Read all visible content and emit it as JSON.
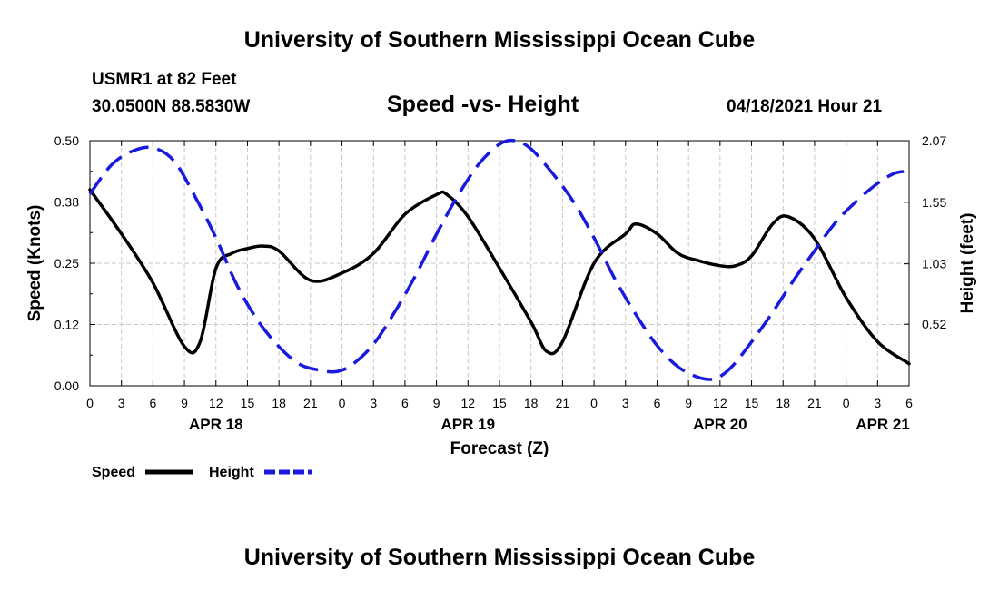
{
  "header": {
    "title_top": "University of Southern Mississippi Ocean Cube",
    "station": "USMR1 at 82 Feet",
    "coords": "30.0500N  88.5830W",
    "chart_title": "Speed -vs- Height",
    "datetime": "04/18/2021 Hour 21"
  },
  "footer": {
    "title_bottom": "University of Southern Mississippi Ocean Cube"
  },
  "chart_data": {
    "type": "line",
    "title": "Speed -vs- Height",
    "xlabel": "Forecast (Z)",
    "ylabel_left": "Speed (Knots)",
    "ylabel_right": "Height (feet)",
    "x_range_hours": [
      0,
      78
    ],
    "x_ticks": [
      {
        "h": 0,
        "label": "0"
      },
      {
        "h": 3,
        "label": "3"
      },
      {
        "h": 6,
        "label": "6"
      },
      {
        "h": 9,
        "label": "9"
      },
      {
        "h": 12,
        "label": "12"
      },
      {
        "h": 15,
        "label": "15"
      },
      {
        "h": 18,
        "label": "18"
      },
      {
        "h": 21,
        "label": "21"
      },
      {
        "h": 24,
        "label": "0"
      },
      {
        "h": 27,
        "label": "3"
      },
      {
        "h": 30,
        "label": "6"
      },
      {
        "h": 33,
        "label": "9"
      },
      {
        "h": 36,
        "label": "12"
      },
      {
        "h": 39,
        "label": "15"
      },
      {
        "h": 42,
        "label": "18"
      },
      {
        "h": 45,
        "label": "21"
      },
      {
        "h": 48,
        "label": "0"
      },
      {
        "h": 51,
        "label": "3"
      },
      {
        "h": 54,
        "label": "6"
      },
      {
        "h": 57,
        "label": "9"
      },
      {
        "h": 60,
        "label": "12"
      },
      {
        "h": 63,
        "label": "15"
      },
      {
        "h": 66,
        "label": "18"
      },
      {
        "h": 69,
        "label": "21"
      },
      {
        "h": 72,
        "label": "0"
      },
      {
        "h": 75,
        "label": "3"
      },
      {
        "h": 78,
        "label": "6"
      }
    ],
    "date_labels": [
      {
        "h": 12,
        "label": "APR 18"
      },
      {
        "h": 36,
        "label": "APR 19"
      },
      {
        "h": 60,
        "label": "APR 20"
      },
      {
        "h": 75.5,
        "label": "APR 21"
      }
    ],
    "y_left": {
      "range": [
        0,
        0.5
      ],
      "ticks": [
        {
          "v": 0,
          "label": "0.00"
        },
        {
          "v": 0.125,
          "label": "0.12"
        },
        {
          "v": 0.25,
          "label": "0.25"
        },
        {
          "v": 0.375,
          "label": "0.38"
        },
        {
          "v": 0.5,
          "label": "0.50"
        }
      ]
    },
    "y_right": {
      "range": [
        0,
        2.07
      ],
      "ticks": [
        {
          "v": 0.52,
          "label": "0.52"
        },
        {
          "v": 1.03,
          "label": "1.03"
        },
        {
          "v": 1.55,
          "label": "1.55"
        },
        {
          "v": 2.07,
          "label": "2.07"
        }
      ]
    },
    "grid": true,
    "series": [
      {
        "name": "Speed",
        "axis": "left",
        "color": "#000000",
        "style": "solid",
        "points": [
          [
            0,
            0.4
          ],
          [
            3,
            0.31
          ],
          [
            6,
            0.21
          ],
          [
            9,
            0.08
          ],
          [
            10.5,
            0.09
          ],
          [
            12,
            0.24
          ],
          [
            13.5,
            0.27
          ],
          [
            15,
            0.28
          ],
          [
            16.5,
            0.285
          ],
          [
            18,
            0.275
          ],
          [
            21,
            0.215
          ],
          [
            24,
            0.23
          ],
          [
            27,
            0.27
          ],
          [
            30,
            0.35
          ],
          [
            33,
            0.39
          ],
          [
            34,
            0.39
          ],
          [
            36,
            0.345
          ],
          [
            39,
            0.24
          ],
          [
            42,
            0.13
          ],
          [
            43.5,
            0.07
          ],
          [
            45,
            0.09
          ],
          [
            48,
            0.25
          ],
          [
            51,
            0.31
          ],
          [
            52,
            0.33
          ],
          [
            54,
            0.31
          ],
          [
            56,
            0.27
          ],
          [
            58,
            0.255
          ],
          [
            60,
            0.245
          ],
          [
            61.5,
            0.245
          ],
          [
            63,
            0.265
          ],
          [
            65,
            0.33
          ],
          [
            66.5,
            0.345
          ],
          [
            69,
            0.3
          ],
          [
            72,
            0.18
          ],
          [
            75,
            0.09
          ],
          [
            78,
            0.045
          ]
        ]
      },
      {
        "name": "Height",
        "axis": "right",
        "color": "#1a1adc",
        "style": "dashed",
        "points": [
          [
            0,
            1.62
          ],
          [
            2,
            1.86
          ],
          [
            4,
            1.98
          ],
          [
            6,
            2.01
          ],
          [
            8,
            1.9
          ],
          [
            10,
            1.6
          ],
          [
            12,
            1.25
          ],
          [
            14,
            0.85
          ],
          [
            16,
            0.55
          ],
          [
            18,
            0.33
          ],
          [
            20,
            0.18
          ],
          [
            22,
            0.13
          ],
          [
            23.5,
            0.12
          ],
          [
            25,
            0.18
          ],
          [
            27,
            0.35
          ],
          [
            29,
            0.62
          ],
          [
            31,
            0.93
          ],
          [
            33,
            1.28
          ],
          [
            35,
            1.6
          ],
          [
            37,
            1.87
          ],
          [
            39,
            2.04
          ],
          [
            40.5,
            2.07
          ],
          [
            42,
            2.0
          ],
          [
            44,
            1.8
          ],
          [
            46,
            1.56
          ],
          [
            48,
            1.25
          ],
          [
            50,
            0.9
          ],
          [
            52,
            0.6
          ],
          [
            54,
            0.34
          ],
          [
            56,
            0.16
          ],
          [
            58,
            0.07
          ],
          [
            59.5,
            0.06
          ],
          [
            61,
            0.15
          ],
          [
            63,
            0.37
          ],
          [
            65,
            0.62
          ],
          [
            67,
            0.89
          ],
          [
            69,
            1.14
          ],
          [
            71,
            1.38
          ],
          [
            73,
            1.56
          ],
          [
            75,
            1.71
          ],
          [
            76.5,
            1.79
          ],
          [
            77.5,
            1.81
          ]
        ]
      }
    ],
    "legend": [
      {
        "label": "Speed",
        "color": "#000000",
        "style": "solid"
      },
      {
        "label": "Height",
        "color": "#1a1adc",
        "style": "dashed"
      }
    ]
  }
}
